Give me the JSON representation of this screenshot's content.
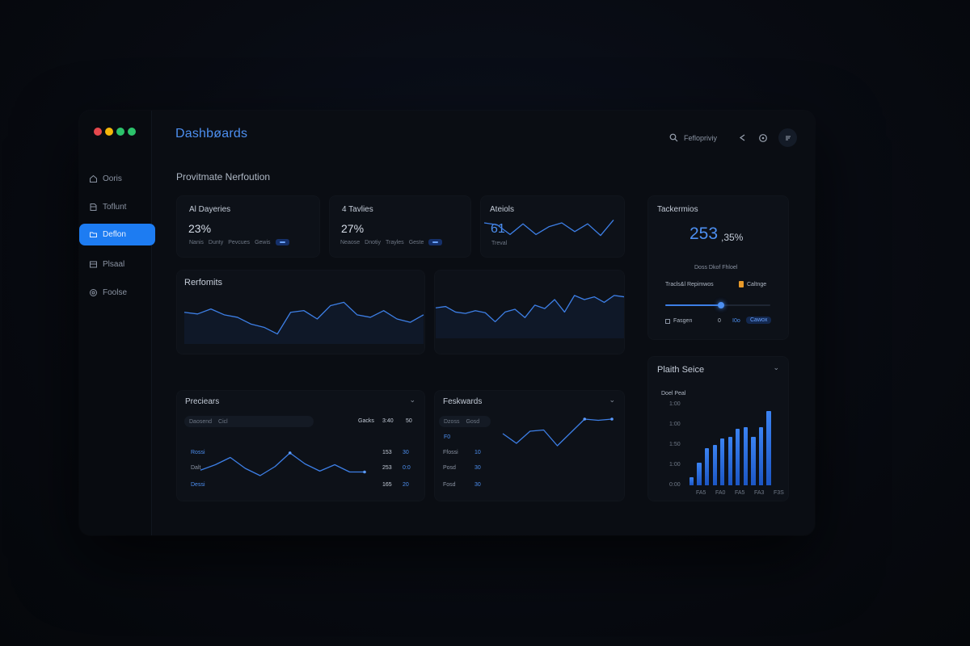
{
  "app": {
    "title": "Dashbøards",
    "subtitle": "Provitmate Nerfoution"
  },
  "colors": {
    "accent": "#1d7cf2",
    "line": "#3d7fe6",
    "bg": "#0a0d13",
    "card": "#0d1118"
  },
  "traffic_lights": [
    "#e5484d",
    "#f5b70a",
    "#2cc36b",
    "#2cc36b"
  ],
  "sidebar": {
    "items": [
      {
        "label": "Ooris",
        "icon": "home-icon"
      },
      {
        "label": "Toflunt",
        "icon": "document-icon"
      },
      {
        "label": "Deflon",
        "icon": "folder-icon",
        "active": true
      },
      {
        "label": "Plsaal",
        "icon": "image-icon"
      },
      {
        "label": "Foolse",
        "icon": "gear-icon"
      }
    ]
  },
  "topbar": {
    "search_label": "Feflopriviy",
    "icons": [
      "search-icon",
      "share-icon",
      "refresh-icon",
      "menu-icon"
    ]
  },
  "stat_cards": [
    {
      "title": "Al Dayeries",
      "value": "23%",
      "foot": [
        "Nanis",
        "Dunty",
        "Pevcues",
        "Gewis"
      ]
    },
    {
      "title": "4 Tavlies",
      "value": "27%",
      "foot": [
        "Neaose",
        "Dnotiy",
        "Trayles",
        "Geste"
      ]
    },
    {
      "title": "Ateiols",
      "value": "61",
      "foot": [
        "Treval"
      ]
    }
  ],
  "sparkline_3": [
    20,
    18,
    8,
    19,
    8,
    16,
    20,
    11,
    19,
    7,
    23
  ],
  "panel_reforums": {
    "title": "Rerfomits",
    "series": [
      38,
      36,
      42,
      35,
      32,
      24,
      20,
      12,
      38,
      40,
      30,
      46,
      50,
      35,
      32,
      40,
      30,
      26,
      35
    ]
  },
  "panel_right_line": {
    "series": [
      44,
      46,
      38,
      36,
      40,
      37,
      24,
      38,
      42,
      30,
      48,
      43,
      56,
      38,
      62,
      56,
      60,
      52,
      62,
      60
    ]
  },
  "trackers": {
    "title": "Tackermios",
    "value": "253",
    "pct": ",35%",
    "caption": "Doss Dkof Fhloel",
    "row_label": "Tracls&l Repimwos",
    "row_tag": "Caltnge",
    "slider_level": 0.53,
    "bottom_label": "Fasgen",
    "bottom_num": "0",
    "bottom_links": [
      "I0o",
      "Cawox"
    ]
  },
  "plaith": {
    "title": "Plaith Seice",
    "chart_data": {
      "type": "bar",
      "title": "Doel Peal",
      "yticks": [
        "1:00",
        "1:00",
        "1:50",
        "1:00",
        "0:00"
      ],
      "xticks": [
        "FA5",
        "FA0",
        "FA5",
        "FA3",
        "F3S"
      ],
      "values": [
        0.5,
        1.4,
        2.3,
        2.5,
        2.9,
        3.0,
        3.5,
        3.6,
        3.0,
        3.6,
        4.6
      ],
      "ylim": [
        0,
        5
      ]
    }
  },
  "preciears": {
    "title": "Preciears",
    "filter_labels": [
      "Daosend",
      "Cicl"
    ],
    "header": [
      "Gacks",
      "3:40",
      "50"
    ],
    "rows": [
      {
        "label": "Rossi",
        "v1": "153",
        "v2": "30"
      },
      {
        "label": "Dalt",
        "v1": "253",
        "v2": "0:0"
      },
      {
        "label": "Dessi",
        "v1": "165",
        "v2": "20"
      }
    ],
    "series": [
      14,
      20,
      28,
      16,
      8,
      18,
      33,
      21,
      13,
      20,
      12,
      12
    ]
  },
  "feskwards": {
    "title": "Feskwards",
    "filter_labels": [
      "Dzoss",
      "Gosd"
    ],
    "rows": [
      {
        "label": "Ffossi",
        "v": "10"
      },
      {
        "label": "Posd",
        "v": "30"
      },
      {
        "label": "Fosd",
        "v": "30"
      }
    ],
    "header_mark": "F0",
    "series": [
      14,
      6,
      16,
      17,
      4,
      15,
      26,
      25,
      26
    ]
  }
}
